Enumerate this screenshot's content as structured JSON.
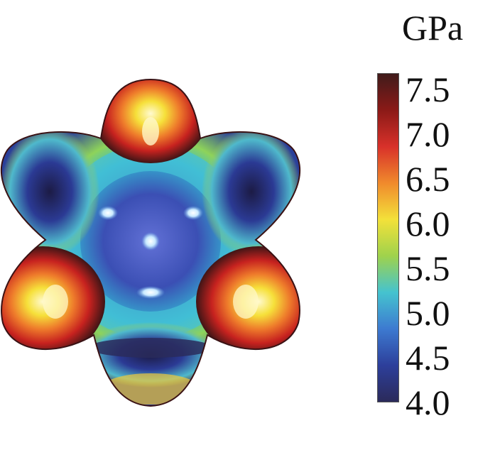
{
  "colorbar": {
    "unit": "GPa",
    "min": 4.0,
    "max": 7.5,
    "ticks": [
      "7.5",
      "7.0",
      "6.5",
      "6.0",
      "5.5",
      "5.0",
      "4.5",
      "4.0"
    ],
    "colors": [
      "#401b1b",
      "#8b1a17",
      "#d8312a",
      "#f08a2c",
      "#f3e13a",
      "#9fd24c",
      "#45c3cf",
      "#3d7ad0",
      "#2d3f9b",
      "#2b2a5a"
    ]
  }
}
